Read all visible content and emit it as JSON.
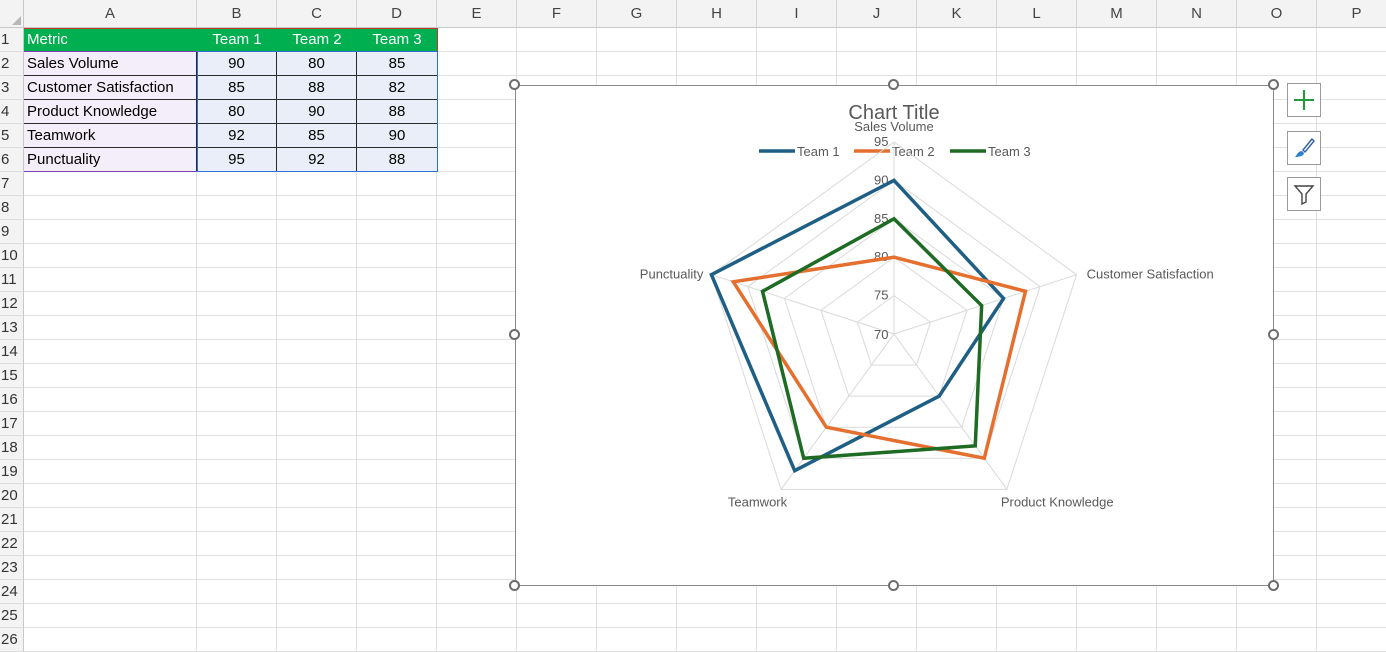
{
  "columns": [
    "A",
    "B",
    "C",
    "D",
    "E",
    "F",
    "G",
    "H",
    "I",
    "J",
    "K",
    "L",
    "M",
    "N",
    "O",
    "P"
  ],
  "rows": [
    "1",
    "2",
    "3",
    "4",
    "5",
    "6",
    "7",
    "8",
    "9",
    "10",
    "11",
    "12",
    "13",
    "14",
    "15",
    "16",
    "17",
    "18",
    "19",
    "20",
    "21",
    "22",
    "23",
    "24",
    "25",
    "26"
  ],
  "table": {
    "header": [
      "Metric",
      "Team 1",
      "Team 2",
      "Team 3"
    ],
    "rows": [
      [
        "Sales Volume",
        "90",
        "80",
        "85"
      ],
      [
        "Customer Satisfaction",
        "85",
        "88",
        "82"
      ],
      [
        "Product Knowledge",
        "80",
        "90",
        "88"
      ],
      [
        "Teamwork",
        "92",
        "85",
        "90"
      ],
      [
        "Punctuality",
        "95",
        "92",
        "88"
      ]
    ]
  },
  "chart_data": {
    "type": "radar",
    "title": "Chart Title",
    "categories": [
      "Sales Volume",
      "Customer Satisfaction",
      "Product Knowledge",
      "Teamwork",
      "Punctuality"
    ],
    "series": [
      {
        "name": "Team 1",
        "color": "#1f5f85",
        "values": [
          90,
          85,
          80,
          92,
          95
        ]
      },
      {
        "name": "Team 2",
        "color": "#e46f2e",
        "values": [
          80,
          88,
          90,
          85,
          92
        ]
      },
      {
        "name": "Team 3",
        "color": "#1e6b23",
        "values": [
          85,
          82,
          88,
          90,
          88
        ]
      }
    ],
    "axis_ticks": [
      "70",
      "75",
      "80",
      "85",
      "90",
      "95"
    ],
    "axis_range": [
      70,
      95
    ],
    "legend_position": "top",
    "grid": true
  },
  "side_buttons": [
    "chart-elements-icon",
    "chart-styles-icon",
    "chart-filters-icon"
  ],
  "colors": {
    "header_green": "#00b050",
    "metric_fill": "#f3eefa",
    "number_fill": "#e9eef8"
  }
}
